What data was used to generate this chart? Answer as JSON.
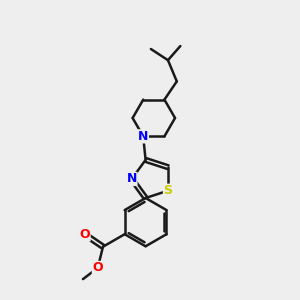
{
  "bg_color": "#eeeeee",
  "bond_color": "#1a1a1a",
  "nitrogen_color": "#0000ff",
  "sulfur_color": "#cccc00",
  "oxygen_color": "#ff0000",
  "carbon_color": "#1a1a1a",
  "bond_width": 1.8,
  "figsize": [
    3.0,
    3.0
  ],
  "dpi": 100,
  "xlim": [
    0,
    10
  ],
  "ylim": [
    0,
    10
  ]
}
